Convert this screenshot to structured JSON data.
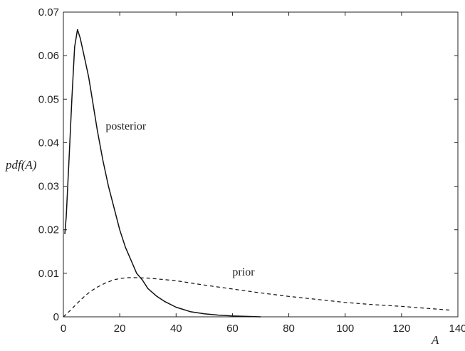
{
  "chart_data": {
    "type": "line",
    "title": "",
    "xlabel": "A",
    "ylabel": "pdf(A)",
    "xlim": [
      0,
      140
    ],
    "ylim": [
      0,
      0.07
    ],
    "grid": false,
    "x_ticks": [
      "0",
      "20",
      "40",
      "60",
      "80",
      "100",
      "120",
      "140"
    ],
    "y_ticks": [
      "0",
      "0.01",
      "0.02",
      "0.03",
      "0.04",
      "0.05",
      "0.06",
      "0.07"
    ],
    "annotations": [
      {
        "text": "posterior",
        "x": 15,
        "y": 0.043
      },
      {
        "text": "prior",
        "x": 60,
        "y": 0.0095
      }
    ],
    "series": [
      {
        "name": "posterior",
        "style": "solid",
        "color": "#111111",
        "x": [
          0.5,
          1,
          2,
          3,
          4,
          5,
          6,
          7,
          8,
          9,
          10,
          12,
          14,
          16,
          18,
          20,
          22,
          24,
          26,
          28,
          30,
          33,
          36,
          40,
          45,
          50,
          55,
          60,
          65,
          70
        ],
        "y": [
          0.019,
          0.023,
          0.036,
          0.05,
          0.062,
          0.066,
          0.064,
          0.061,
          0.058,
          0.055,
          0.051,
          0.043,
          0.036,
          0.03,
          0.025,
          0.02,
          0.016,
          0.013,
          0.01,
          0.0085,
          0.0065,
          0.0048,
          0.0035,
          0.0022,
          0.0012,
          0.0007,
          0.0004,
          0.0002,
          0.0001,
          0.0
        ]
      },
      {
        "name": "prior",
        "style": "dashed",
        "color": "#111111",
        "x": [
          0,
          2,
          4,
          6,
          8,
          10,
          12,
          15,
          18,
          20,
          23,
          26,
          30,
          35,
          40,
          45,
          50,
          60,
          70,
          80,
          90,
          100,
          110,
          120,
          130,
          138
        ],
        "y": [
          0.0,
          0.0012,
          0.0025,
          0.0038,
          0.005,
          0.006,
          0.0068,
          0.0078,
          0.0085,
          0.0088,
          0.009,
          0.009,
          0.0089,
          0.0086,
          0.0083,
          0.0078,
          0.0073,
          0.0064,
          0.0055,
          0.0047,
          0.004,
          0.0033,
          0.0028,
          0.0024,
          0.0019,
          0.0015
        ]
      }
    ]
  }
}
